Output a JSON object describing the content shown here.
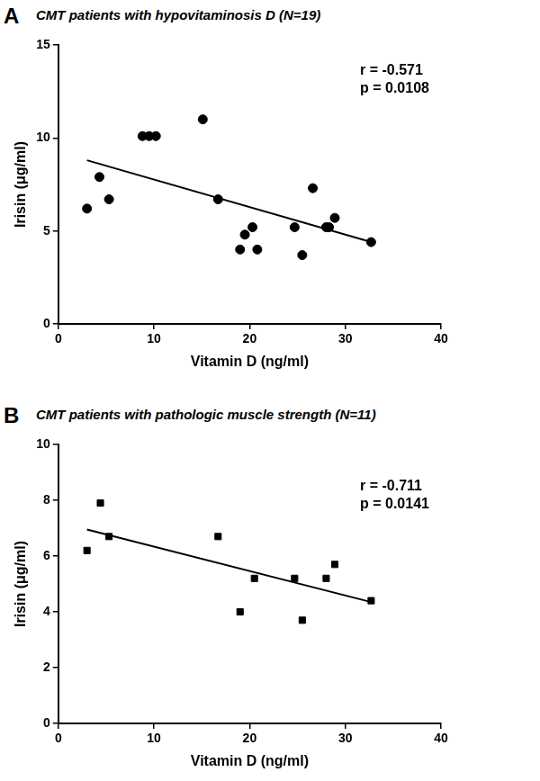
{
  "chart_data": [
    {
      "type": "scatter",
      "label": "A",
      "title": "CMT patients with hypovitaminosis D (N=19)",
      "x_label": "Vitamin D (ng/ml)",
      "y_label": "Irisin (μg/ml)",
      "annotations": [
        "r = -0.571",
        "p = 0.0108"
      ],
      "xlim": [
        0,
        40
      ],
      "xticks": [
        0,
        10,
        20,
        30,
        40
      ],
      "ylim": [
        0,
        15
      ],
      "yticks": [
        0,
        5,
        10,
        15
      ],
      "grid": false,
      "series": [
        {
          "type": "scatter",
          "marker": "circle",
          "color": "#000000",
          "x": [
            3,
            4.3,
            5.3,
            8.8,
            9.5,
            10.2,
            15.1,
            16.7,
            19.0,
            19.5,
            20.3,
            20.8,
            24.7,
            25.5,
            26.6,
            28.0,
            28.3,
            28.9,
            32.7
          ],
          "values": [
            6.2,
            7.9,
            6.7,
            10.1,
            10.1,
            10.1,
            11.0,
            6.7,
            4.0,
            4.8,
            5.2,
            4.0,
            5.2,
            3.7,
            7.3,
            5.2,
            5.2,
            5.7,
            4.4
          ]
        },
        {
          "type": "line",
          "line_style": "solid",
          "color": "#000000",
          "x": [
            3,
            32.7
          ],
          "values": [
            8.8,
            4.4
          ]
        }
      ]
    },
    {
      "type": "scatter",
      "label": "B",
      "title": "CMT patients with pathologic muscle strength (N=11)",
      "x_label": "Vitamin D (ng/ml)",
      "y_label": "Irisin (μg/ml)",
      "annotations": [
        "r = -0.711",
        "p = 0.0141"
      ],
      "xlim": [
        0,
        40
      ],
      "xticks": [
        0,
        10,
        20,
        30,
        40
      ],
      "ylim": [
        0,
        10
      ],
      "yticks": [
        0,
        2,
        4,
        6,
        8,
        10
      ],
      "grid": false,
      "series": [
        {
          "type": "scatter",
          "marker": "square",
          "color": "#000000",
          "x": [
            3,
            4.4,
            5.3,
            16.7,
            19.0,
            20.5,
            24.7,
            25.5,
            28.0,
            28.9,
            32.7
          ],
          "values": [
            6.2,
            7.9,
            6.7,
            6.7,
            4.0,
            5.2,
            5.2,
            3.7,
            5.2,
            5.7,
            4.4
          ]
        },
        {
          "type": "line",
          "line_style": "solid",
          "color": "#000000",
          "x": [
            3,
            32.7
          ],
          "values": [
            6.95,
            4.35
          ]
        }
      ]
    }
  ]
}
